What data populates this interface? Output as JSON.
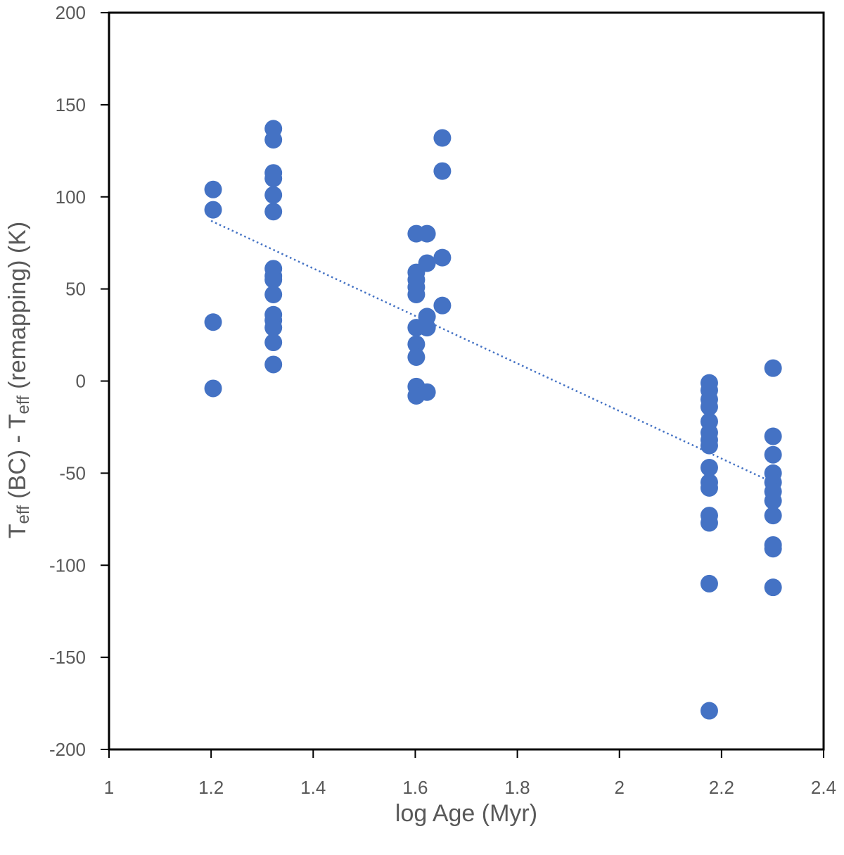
{
  "chart_data": {
    "type": "scatter",
    "title": "",
    "xlabel": "log Age (Myr)",
    "ylabel": {
      "parts": [
        {
          "text": "T",
          "sub": false
        },
        {
          "text": "eff",
          "sub": true
        },
        {
          "text": " (BC) - T",
          "sub": false
        },
        {
          "text": "eff",
          "sub": true
        },
        {
          "text": " (remapping) (K)",
          "sub": false
        }
      ]
    },
    "xlim": [
      1,
      2.4
    ],
    "ylim": [
      -200,
      200
    ],
    "x_ticks": [
      "1",
      "1.2",
      "1.4",
      "1.6",
      "1.8",
      "2",
      "2.2",
      "2.4"
    ],
    "y_ticks": [
      "200",
      "150",
      "100",
      "50",
      "0",
      "-50",
      "-100",
      "-150",
      "-200"
    ],
    "grid": false,
    "legend": "none",
    "marker_color": "#4472C4",
    "trendline_color": "#4472C4",
    "points": [
      {
        "x": 1.204,
        "y": 104
      },
      {
        "x": 1.204,
        "y": 93
      },
      {
        "x": 1.204,
        "y": 32
      },
      {
        "x": 1.204,
        "y": -4
      },
      {
        "x": 1.322,
        "y": 137
      },
      {
        "x": 1.322,
        "y": 131
      },
      {
        "x": 1.322,
        "y": 113
      },
      {
        "x": 1.322,
        "y": 110
      },
      {
        "x": 1.322,
        "y": 101
      },
      {
        "x": 1.322,
        "y": 92
      },
      {
        "x": 1.322,
        "y": 61
      },
      {
        "x": 1.322,
        "y": 57
      },
      {
        "x": 1.322,
        "y": 55
      },
      {
        "x": 1.322,
        "y": 47
      },
      {
        "x": 1.322,
        "y": 36
      },
      {
        "x": 1.322,
        "y": 33
      },
      {
        "x": 1.322,
        "y": 29
      },
      {
        "x": 1.322,
        "y": 21
      },
      {
        "x": 1.322,
        "y": 9
      },
      {
        "x": 1.602,
        "y": 80
      },
      {
        "x": 1.602,
        "y": 59
      },
      {
        "x": 1.602,
        "y": 55
      },
      {
        "x": 1.602,
        "y": 51
      },
      {
        "x": 1.602,
        "y": 47
      },
      {
        "x": 1.602,
        "y": 29
      },
      {
        "x": 1.602,
        "y": 20
      },
      {
        "x": 1.602,
        "y": 13
      },
      {
        "x": 1.602,
        "y": -3
      },
      {
        "x": 1.602,
        "y": -8
      },
      {
        "x": 1.623,
        "y": 80
      },
      {
        "x": 1.623,
        "y": 64
      },
      {
        "x": 1.623,
        "y": 35
      },
      {
        "x": 1.623,
        "y": 29
      },
      {
        "x": 1.623,
        "y": -6
      },
      {
        "x": 1.653,
        "y": 132
      },
      {
        "x": 1.653,
        "y": 114
      },
      {
        "x": 1.653,
        "y": 67
      },
      {
        "x": 1.653,
        "y": 41
      },
      {
        "x": 2.176,
        "y": -1
      },
      {
        "x": 2.176,
        "y": -5
      },
      {
        "x": 2.176,
        "y": -10
      },
      {
        "x": 2.176,
        "y": -14
      },
      {
        "x": 2.176,
        "y": -22
      },
      {
        "x": 2.176,
        "y": -28
      },
      {
        "x": 2.176,
        "y": -32
      },
      {
        "x": 2.176,
        "y": -35
      },
      {
        "x": 2.176,
        "y": -47
      },
      {
        "x": 2.176,
        "y": -55
      },
      {
        "x": 2.176,
        "y": -58
      },
      {
        "x": 2.176,
        "y": -73
      },
      {
        "x": 2.176,
        "y": -77
      },
      {
        "x": 2.176,
        "y": -110
      },
      {
        "x": 2.176,
        "y": -179
      },
      {
        "x": 2.301,
        "y": 7
      },
      {
        "x": 2.301,
        "y": -30
      },
      {
        "x": 2.301,
        "y": -40
      },
      {
        "x": 2.301,
        "y": -50
      },
      {
        "x": 2.301,
        "y": -55
      },
      {
        "x": 2.301,
        "y": -60
      },
      {
        "x": 2.301,
        "y": -65
      },
      {
        "x": 2.301,
        "y": -73
      },
      {
        "x": 2.301,
        "y": -89
      },
      {
        "x": 2.301,
        "y": -91
      },
      {
        "x": 2.301,
        "y": -112
      }
    ],
    "trendline": {
      "style": "dotted",
      "x": [
        1.2,
        2.3
      ],
      "y": [
        87,
        -55
      ]
    }
  }
}
